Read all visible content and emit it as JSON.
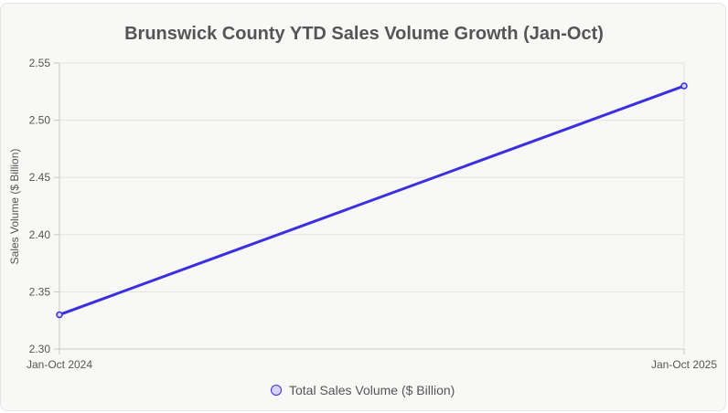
{
  "chart_data": {
    "type": "line",
    "title": "Brunswick County YTD Sales Volume Growth (Jan-Oct)",
    "categories": [
      "Jan-Oct 2024",
      "Jan-Oct 2025"
    ],
    "series": [
      {
        "name": "Total Sales Volume ($ Billion)",
        "values": [
          2.33,
          2.53
        ],
        "color": "#3b2fe0"
      }
    ],
    "xlabel": "",
    "ylabel": "Sales Volume ($ Billion)",
    "ylim": [
      2.3,
      2.55
    ],
    "yticks": [
      "2.30",
      "2.35",
      "2.40",
      "2.45",
      "2.50",
      "2.55"
    ],
    "grid": true,
    "legend": "bottom"
  },
  "colors": {
    "line": "#3b2fe0",
    "marker_fill": "#d6d3f5",
    "grid": "#e2e2e2",
    "axis": "#c8c8c8"
  }
}
